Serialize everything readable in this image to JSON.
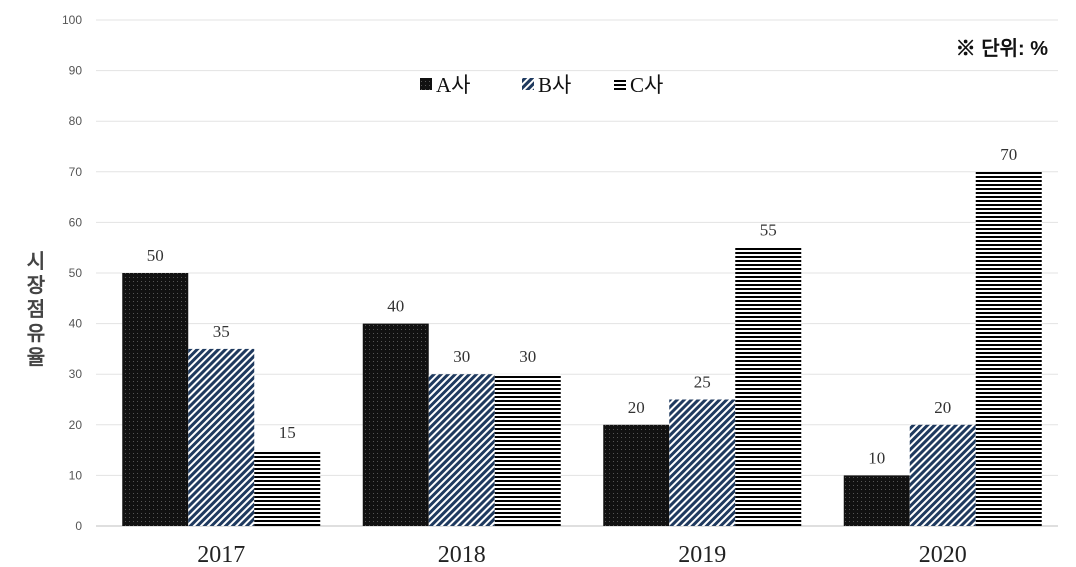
{
  "chart_data": {
    "type": "bar",
    "categories": [
      "2017",
      "2018",
      "2019",
      "2020"
    ],
    "series": [
      {
        "name": "A사",
        "values": [
          50,
          40,
          20,
          10
        ],
        "color": "#111111",
        "pattern": "dotted-black"
      },
      {
        "name": "B사",
        "values": [
          35,
          30,
          25,
          20
        ],
        "color": "#1f3a5f",
        "pattern": "diagonal-hatch"
      },
      {
        "name": "C사",
        "values": [
          15,
          30,
          55,
          70
        ],
        "color": "#000000",
        "pattern": "horizontal-lines"
      }
    ],
    "ylabel": "시장점유율",
    "unit_note": "※ 단위: %",
    "ylim": [
      0,
      100
    ],
    "yticks": [
      0,
      10,
      20,
      30,
      40,
      50,
      60,
      70,
      80,
      90,
      100
    ],
    "grid": true,
    "legend_position": "top-center"
  }
}
